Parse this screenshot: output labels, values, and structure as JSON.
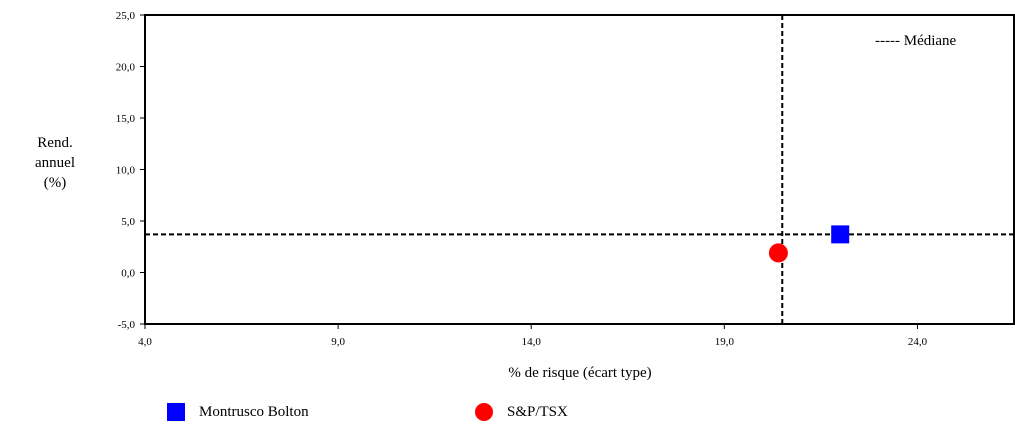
{
  "chart_data": {
    "type": "scatter",
    "ylabel_lines": [
      "Rend.",
      "annuel",
      "(%)"
    ],
    "xlabel": "% de risque (écart type)",
    "xlim": [
      4.0,
      26.5
    ],
    "ylim": [
      -5.0,
      25.0
    ],
    "x_ticks": [
      4.0,
      9.0,
      14.0,
      19.0,
      24.0
    ],
    "x_tick_labels": [
      "4,0",
      "9,0",
      "14,0",
      "19,0",
      "24,0"
    ],
    "y_ticks": [
      -5.0,
      0.0,
      5.0,
      10.0,
      15.0,
      20.0,
      25.0
    ],
    "y_tick_labels": [
      "-5,0",
      "0,0",
      "5,0",
      "10,0",
      "15,0",
      "20,0",
      "25,0"
    ],
    "median": {
      "label": "----- Médiane",
      "x": 20.5,
      "y": 3.7
    },
    "series": [
      {
        "name": "Montrusco Bolton",
        "marker": "square",
        "color": "#0000ff",
        "x": 22.0,
        "y": 3.7
      },
      {
        "name": "S&P/TSX",
        "marker": "circle",
        "color": "#ff0000",
        "x": 20.4,
        "y": 1.9
      }
    ],
    "grid": false,
    "legend_position": "bottom"
  }
}
